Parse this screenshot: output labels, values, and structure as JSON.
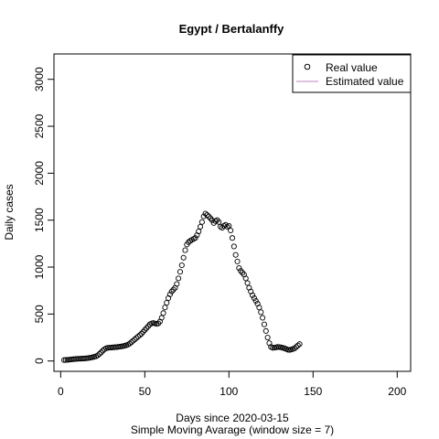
{
  "chart_data": {
    "type": "scatter",
    "title": "Egypt / Bertalanffy",
    "xlabel": "Days since 2020-03-15",
    "subtitle": "Simple Moving Avarage (window size = 7)",
    "ylabel": "Daily cases",
    "xlim": [
      -4,
      208
    ],
    "ylim": [
      -110,
      3270
    ],
    "x_ticks": [
      0,
      50,
      100,
      150,
      200
    ],
    "y_ticks": [
      0,
      500,
      1000,
      1500,
      2000,
      2500,
      3000
    ],
    "legend": {
      "position": "top-right",
      "entries": [
        "Real value",
        "Estimated value"
      ]
    },
    "colors": {
      "real": "#000000",
      "estimated": "#c080c0"
    },
    "series": [
      {
        "name": "Real value",
        "marker": "open-circle",
        "y_start_x": 2,
        "values": [
          10,
          11,
          12,
          14,
          16,
          18,
          20,
          22,
          23,
          24,
          25,
          26,
          27,
          28,
          30,
          33,
          36,
          40,
          45,
          50,
          60,
          75,
          90,
          110,
          125,
          135,
          140,
          142,
          143,
          145,
          146,
          148,
          150,
          152,
          155,
          158,
          162,
          168,
          175,
          185,
          200,
          215,
          230,
          245,
          260,
          275,
          290,
          310,
          330,
          350,
          370,
          390,
          400,
          405,
          400,
          395,
          400,
          420,
          460,
          510,
          570,
          620,
          670,
          710,
          740,
          760,
          780,
          820,
          880,
          950,
          1020,
          1100,
          1180,
          1240,
          1265,
          1280,
          1290,
          1300,
          1310,
          1340,
          1380,
          1430,
          1480,
          1540,
          1570,
          1555,
          1540,
          1520,
          1500,
          1470,
          1490,
          1500,
          1480,
          1430,
          1420,
          1440,
          1450,
          1430,
          1440,
          1390,
          1310,
          1220,
          1130,
          1060,
          990,
          960,
          940,
          920,
          880,
          830,
          780,
          740,
          700,
          670,
          640,
          610,
          570,
          520,
          460,
          390,
          320,
          250,
          190,
          150,
          140,
          142,
          145,
          150,
          148,
          145,
          140,
          135,
          128,
          120,
          118,
          122,
          128,
          135,
          150,
          165,
          180
        ]
      }
    ]
  }
}
